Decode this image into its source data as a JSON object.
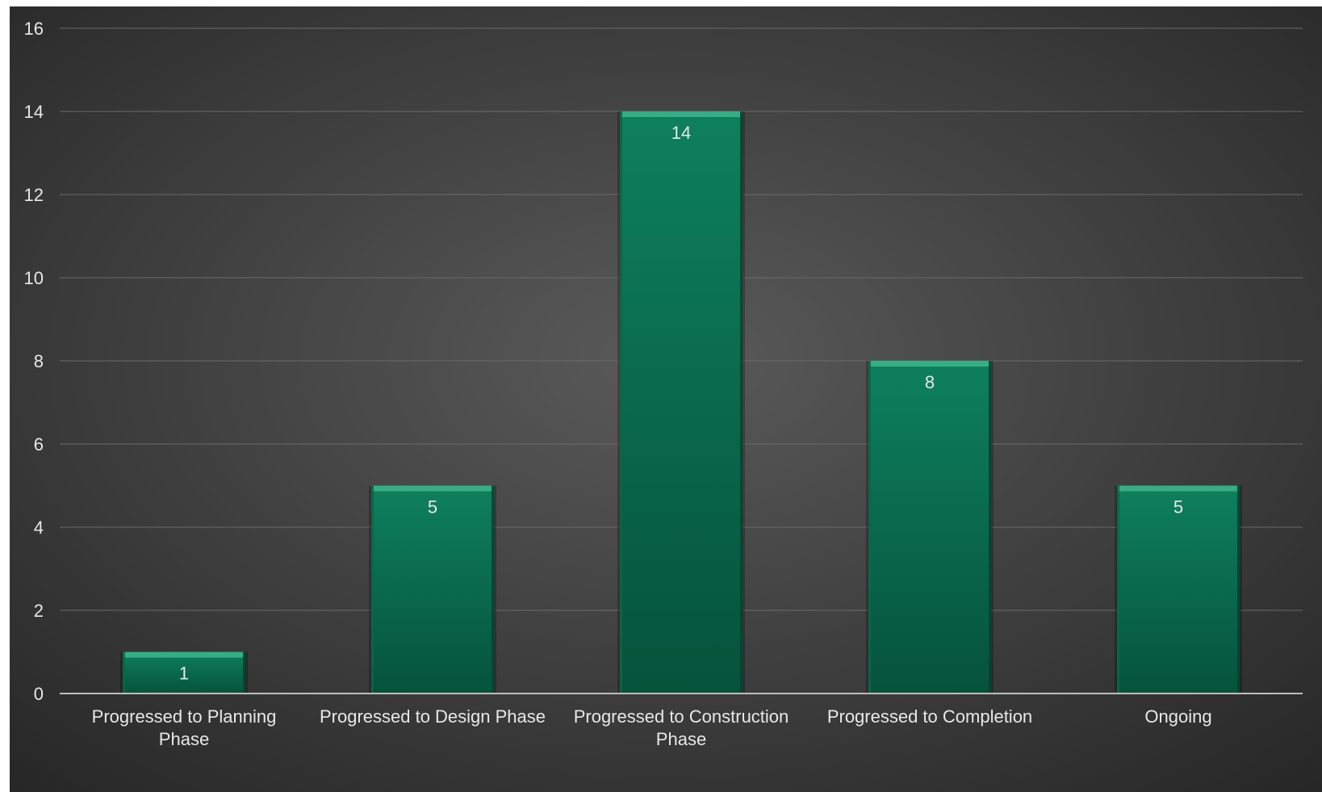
{
  "chart_data": {
    "type": "bar",
    "categories": [
      [
        "Progressed to Planning",
        "Phase"
      ],
      [
        "Progressed to Design Phase"
      ],
      [
        "Progressed to Construction",
        "Phase"
      ],
      [
        "Progressed to Completion"
      ],
      [
        "Ongoing"
      ]
    ],
    "values": [
      1,
      5,
      14,
      8,
      5
    ],
    "data_labels": [
      "1",
      "5",
      "14",
      "8",
      "5"
    ],
    "y_ticks": [
      "0",
      "2",
      "4",
      "6",
      "8",
      "10",
      "12",
      "14",
      "16"
    ],
    "ylim": [
      0,
      16
    ],
    "title": "",
    "xlabel": "",
    "ylabel": "",
    "grid": true,
    "legend": "none"
  },
  "colors": {
    "background_center": "#5a5a5a",
    "background_edge": "#262626",
    "bar_top": "#0e805c",
    "bar_bottom": "#05533a",
    "bar_bevel": "#3fb58c",
    "text": "#e8e8e8",
    "gridline": "#6a6a6a",
    "axis": "#bdbdbd"
  }
}
